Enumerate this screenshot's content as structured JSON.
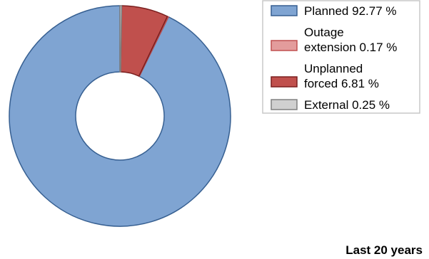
{
  "chart_data": {
    "type": "pie",
    "variant": "donut",
    "title": "",
    "caption": "Last 20 years",
    "legend_position": "top-right",
    "slices": [
      {
        "key": "planned",
        "value": 92.77,
        "label_lines": [
          "Planned 92.77 %"
        ],
        "color": "#7fa4d2",
        "stroke": "#365f91"
      },
      {
        "key": "outage-extension",
        "value": 0.17,
        "label_lines": [
          "Outage",
          "extension 0.17 %"
        ],
        "color": "#e39c9c",
        "stroke": "#c05050"
      },
      {
        "key": "unplanned-forced",
        "value": 6.81,
        "label_lines": [
          "Unplanned",
          "forced 6.81 %"
        ],
        "color": "#c0504d",
        "stroke": "#7a1f1f"
      },
      {
        "key": "external",
        "value": 0.25,
        "label_lines": [
          "External 0.25 %"
        ],
        "color": "#d0d0d0",
        "stroke": "#808080"
      }
    ]
  }
}
